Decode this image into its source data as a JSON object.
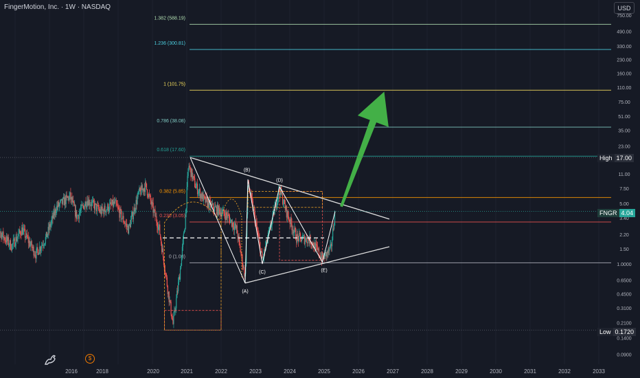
{
  "header": {
    "title": "FingerMotion, Inc. · 1W · NASDAQ",
    "currency": "USD"
  },
  "chart_data": {
    "type": "candlestick",
    "symbol": "FNGR",
    "interval": "1W",
    "exchange": "NASDAQ",
    "y_scale": "log",
    "ylim": [
      0.075,
      900
    ],
    "xlim": [
      2015.4,
      2033.5
    ],
    "x_ticks": [
      "2016",
      "2018",
      "2020",
      "2021",
      "2022",
      "2023",
      "2024",
      "2025",
      "2026",
      "2027",
      "2028",
      "2029",
      "2030",
      "2031",
      "2032",
      "2033"
    ],
    "y_ticks": [
      "750.00",
      "490.00",
      "330.00",
      "230.00",
      "160.00",
      "110.00",
      "75.00",
      "51.00",
      "35.00",
      "23.00",
      "11.00",
      "7.50",
      "5.00",
      "3.40",
      "2.20",
      "1.50",
      "1.0000",
      "0.6500",
      "0.4500",
      "0.3100",
      "0.2100",
      "0.1400",
      "0.0900"
    ],
    "price_tags": [
      {
        "label": "High",
        "value": "17.00",
        "price": 17.0
      },
      {
        "label": "FNGR",
        "value": "4.04",
        "price": 4.04
      },
      {
        "label": "Low",
        "value": "0.1720",
        "price": 0.172
      }
    ],
    "fib_levels": [
      {
        "label": "1.382 (588.19)",
        "price": 588.19,
        "color": "#b2dfb2"
      },
      {
        "label": "1.236 (300.81)",
        "price": 300.81,
        "color": "#4dd0e1"
      },
      {
        "label": "1 (101.75)",
        "price": 101.75,
        "color": "#f9e15f"
      },
      {
        "label": "0.786 (38.08)",
        "price": 38.08,
        "color": "#80cbc4"
      },
      {
        "label": "0.618 (17.60)",
        "price": 17.6,
        "color": "#26a69a"
      },
      {
        "label": "0.382 (5.85)",
        "price": 5.85,
        "color": "#ff9800"
      },
      {
        "label": "0.236 (3.05)",
        "price": 3.05,
        "color": "#ef5350"
      },
      {
        "label": "0 (1.03)",
        "price": 1.03,
        "color": "#b2b5be"
      }
    ],
    "wave_labels": [
      {
        "text": "(A)",
        "t": 2022.7,
        "price": 0.6
      },
      {
        "text": "(B)",
        "t": 2022.75,
        "price": 10.5
      },
      {
        "text": "(C)",
        "t": 2023.2,
        "price": 1.0
      },
      {
        "text": "(D)",
        "t": 2023.7,
        "price": 8.0
      },
      {
        "text": "(E)",
        "t": 2025.0,
        "price": 1.05
      }
    ]
  }
}
